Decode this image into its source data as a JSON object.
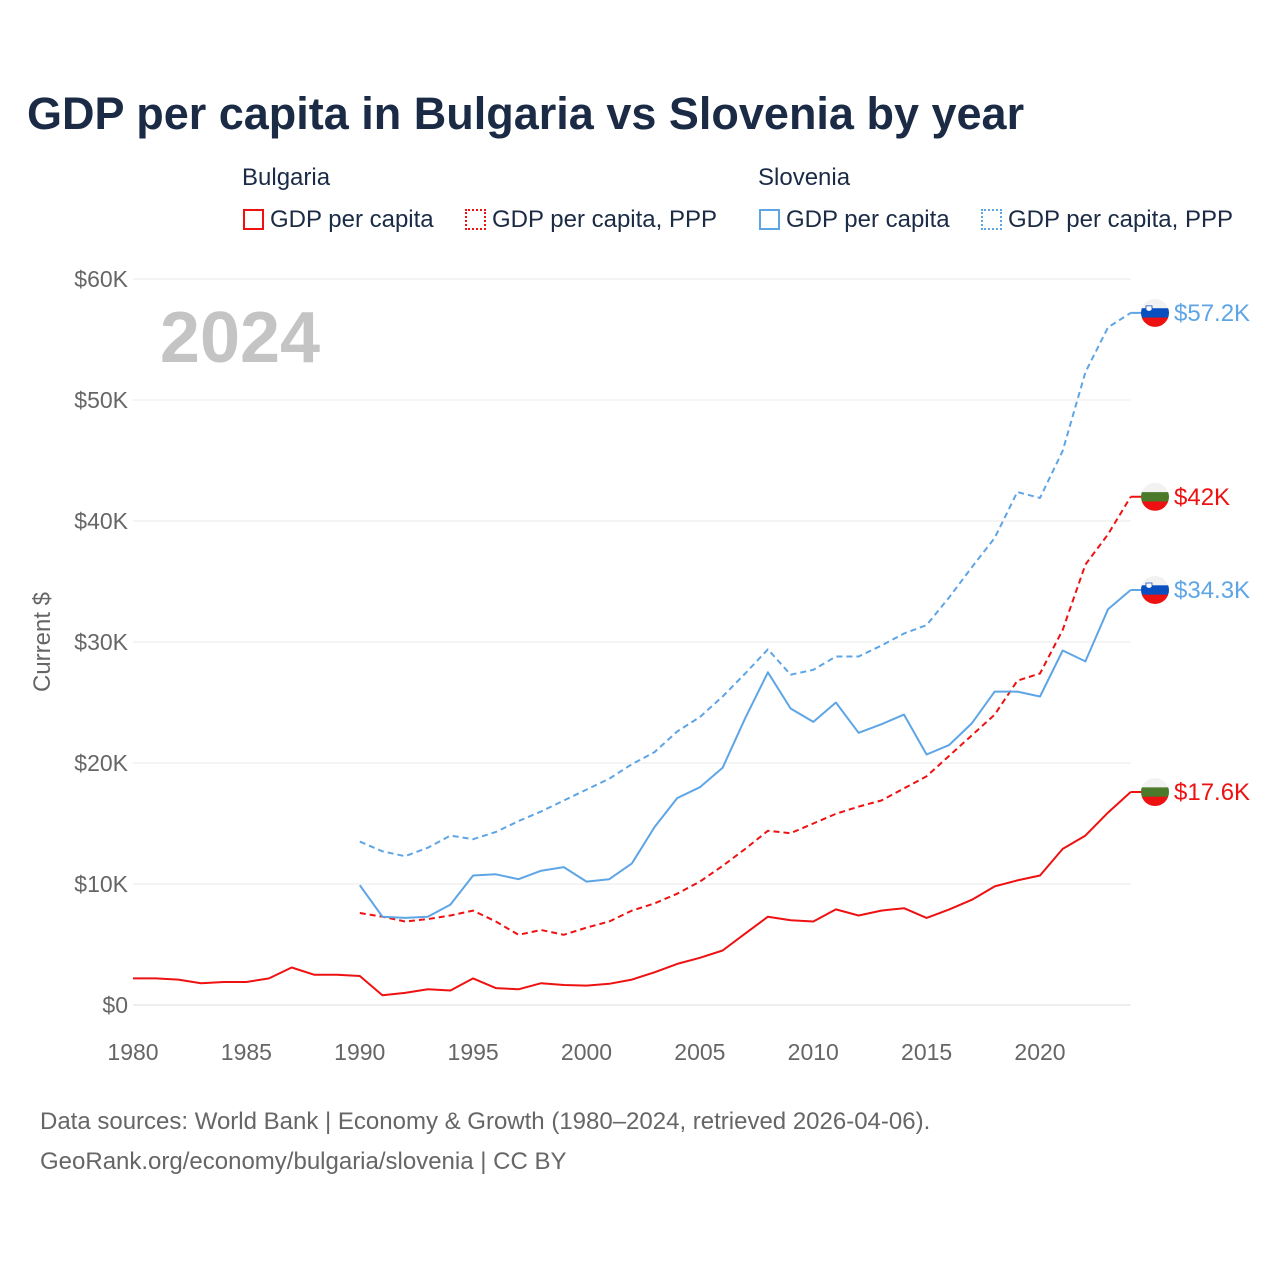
{
  "title": "GDP per capita in Bulgaria vs Slovenia by year",
  "legend": {
    "groups": [
      {
        "name": "Bulgaria",
        "items": [
          {
            "label": "GDP per capita",
            "color": "#ee1111",
            "style": "solid"
          },
          {
            "label": "GDP per capita, PPP",
            "color": "#ee1111",
            "style": "dotted"
          }
        ]
      },
      {
        "name": "Slovenia",
        "items": [
          {
            "label": "GDP per capita",
            "color": "#5ea5e6",
            "style": "solid"
          },
          {
            "label": "GDP per capita, PPP",
            "color": "#5ea5e6",
            "style": "dotted"
          }
        ]
      }
    ]
  },
  "source_lines": [
    "Data sources: World Bank | Economy & Growth (1980–2024, retrieved 2026-04-06).",
    "GeoRank.org/economy/bulgaria/slovenia | CC BY"
  ],
  "chart_data": {
    "type": "line",
    "title": "GDP per capita in Bulgaria vs Slovenia by year",
    "year_watermark": "2024",
    "xlabel": "",
    "ylabel": "Current $",
    "xlim": [
      1980,
      2024
    ],
    "ylim": [
      0,
      60
    ],
    "y_unit": "thousand USD",
    "x_ticks": [
      1980,
      1985,
      1990,
      1995,
      2000,
      2005,
      2010,
      2015,
      2020
    ],
    "y_ticks": [
      0,
      10,
      20,
      30,
      40,
      50,
      60
    ],
    "y_tick_labels": [
      "$0",
      "$10K",
      "$20K",
      "$30K",
      "$40K",
      "$50K",
      "$60K"
    ],
    "grid": true,
    "series": [
      {
        "name": "Bulgaria GDP per capita",
        "country": "Bulgaria",
        "color": "#ee1111",
        "dash": false,
        "end_label": "$17.6K",
        "start": 1980,
        "values": [
          2.2,
          2.2,
          2.1,
          1.8,
          1.9,
          1.9,
          2.2,
          3.1,
          2.5,
          2.5,
          2.4,
          0.8,
          1.0,
          1.3,
          1.2,
          2.2,
          1.4,
          1.3,
          1.8,
          1.65,
          1.6,
          1.75,
          2.1,
          2.7,
          3.4,
          3.9,
          4.5,
          5.9,
          7.3,
          7.0,
          6.9,
          7.9,
          7.4,
          7.8,
          8.0,
          7.2,
          7.9,
          8.7,
          9.8,
          10.3,
          10.7,
          12.9,
          14.0,
          15.9,
          17.6
        ]
      },
      {
        "name": "Bulgaria GDP per capita, PPP",
        "country": "Bulgaria",
        "color": "#ee1111",
        "dash": true,
        "end_label": "$42K",
        "start": 1990,
        "values": [
          7.6,
          7.3,
          6.9,
          7.1,
          7.4,
          7.8,
          6.9,
          5.8,
          6.2,
          5.8,
          6.4,
          6.9,
          7.8,
          8.4,
          9.2,
          10.2,
          11.5,
          12.9,
          14.4,
          14.2,
          15.0,
          15.8,
          16.4,
          16.9,
          17.9,
          18.9,
          20.6,
          22.3,
          24.0,
          26.8,
          27.4,
          31.0,
          36.4,
          38.9,
          42.0
        ]
      },
      {
        "name": "Slovenia GDP per capita",
        "country": "Slovenia",
        "color": "#5ea5e6",
        "dash": false,
        "end_label": "$34.3K",
        "start": 1990,
        "values": [
          9.9,
          7.3,
          7.2,
          7.3,
          8.3,
          10.7,
          10.8,
          10.4,
          11.1,
          11.4,
          10.2,
          10.4,
          11.7,
          14.7,
          17.1,
          18.0,
          19.6,
          23.7,
          27.5,
          24.5,
          23.4,
          25.0,
          22.5,
          23.2,
          24.0,
          20.7,
          21.5,
          23.3,
          25.9,
          25.9,
          25.5,
          29.3,
          28.4,
          32.7,
          34.3
        ]
      },
      {
        "name": "Slovenia GDP per capita, PPP",
        "country": "Slovenia",
        "color": "#5ea5e6",
        "dash": true,
        "end_label": "$57.2K",
        "start": 1990,
        "values": [
          13.5,
          12.7,
          12.3,
          13.0,
          14.0,
          13.7,
          14.3,
          15.2,
          16.0,
          16.9,
          17.8,
          18.7,
          19.9,
          20.9,
          22.6,
          23.8,
          25.5,
          27.4,
          29.4,
          27.3,
          27.7,
          28.8,
          28.8,
          29.7,
          30.7,
          31.4,
          33.7,
          36.2,
          38.6,
          42.4,
          41.9,
          45.8,
          52.3,
          56.0,
          57.2
        ]
      }
    ]
  }
}
